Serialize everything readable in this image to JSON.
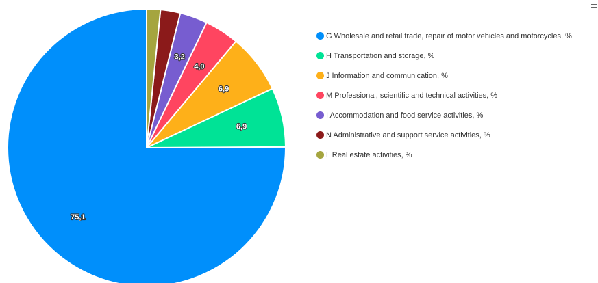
{
  "chart_data": {
    "type": "pie",
    "title": "",
    "legend_position": "right",
    "slices": [
      {
        "label": "G Wholesale and retail trade, repair of motor vehicles and motorcycles, %",
        "value": 75.1,
        "value_label": "75,1",
        "color": "#008ffb"
      },
      {
        "label": "H Transportation and storage, %",
        "value": 6.9,
        "value_label": "6,9",
        "color": "#00e396"
      },
      {
        "label": "J Information and communication, %",
        "value": 6.9,
        "value_label": "6,9",
        "color": "#feb019"
      },
      {
        "label": "M Professional, scientific and technical activities, %",
        "value": 4.0,
        "value_label": "4,0",
        "color": "#ff4560"
      },
      {
        "label": "I Accommodation and food service activities, %",
        "value": 3.2,
        "value_label": "3,2",
        "color": "#775dd0"
      },
      {
        "label": "N Administrative and support service activities, %",
        "value": 2.3,
        "value_label": "",
        "color": "#8b1a1a"
      },
      {
        "label": "L Real estate activities, %",
        "value": 1.6,
        "value_label": "",
        "color": "#a5a53f"
      }
    ]
  },
  "toolbar": {
    "menu_icon": "hamburger-menu-icon"
  }
}
